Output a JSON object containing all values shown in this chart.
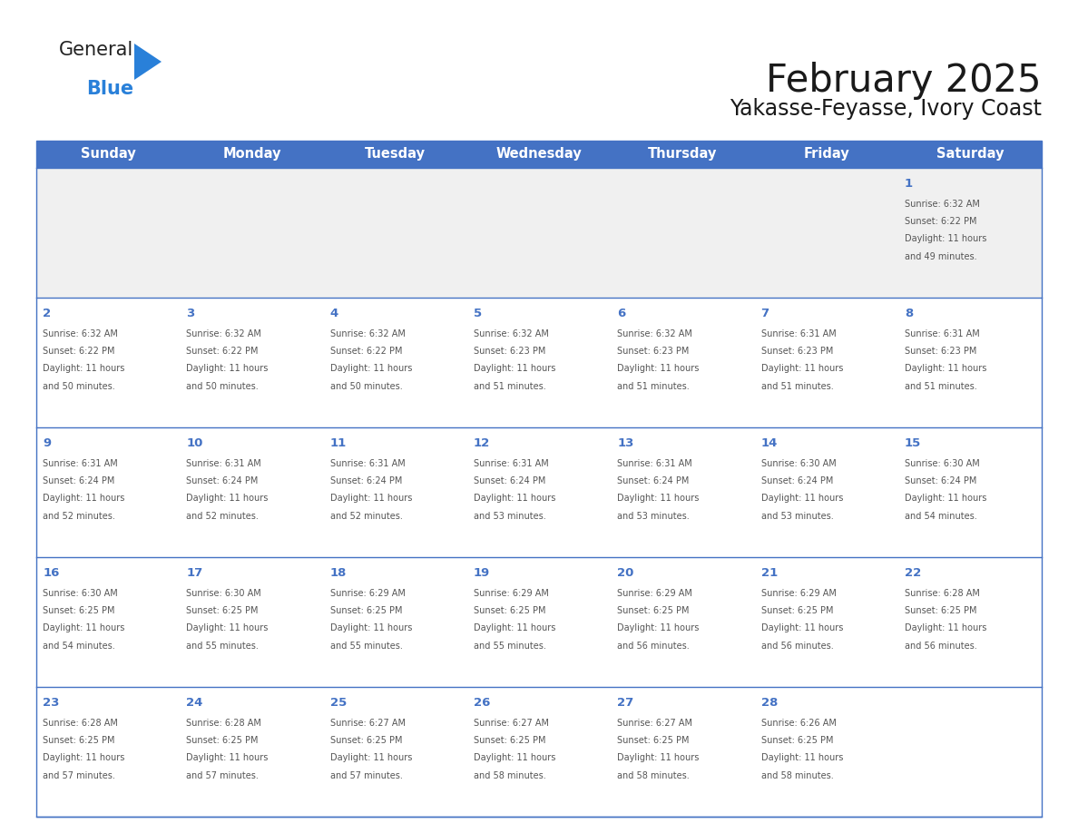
{
  "title": "February 2025",
  "subtitle": "Yakasse-Feyasse, Ivory Coast",
  "header_bg": "#4472C4",
  "header_text_color": "#FFFFFF",
  "days_of_week": [
    "Sunday",
    "Monday",
    "Tuesday",
    "Wednesday",
    "Thursday",
    "Friday",
    "Saturday"
  ],
  "row_bg_first": "#F0F0F0",
  "row_bg_normal": "#FFFFFF",
  "grid_color_header": "#4472C4",
  "grid_color_row": "#4472C4",
  "day_number_color": "#4472C4",
  "info_text_color": "#555555",
  "title_color": "#1a1a1a",
  "subtitle_color": "#1a1a1a",
  "calendar": [
    [
      null,
      null,
      null,
      null,
      null,
      null,
      {
        "day": 1,
        "sunrise": "6:32 AM",
        "sunset": "6:22 PM",
        "daylight_line1": "11 hours",
        "daylight_line2": "and 49 minutes."
      }
    ],
    [
      {
        "day": 2,
        "sunrise": "6:32 AM",
        "sunset": "6:22 PM",
        "daylight_line1": "11 hours",
        "daylight_line2": "and 50 minutes."
      },
      {
        "day": 3,
        "sunrise": "6:32 AM",
        "sunset": "6:22 PM",
        "daylight_line1": "11 hours",
        "daylight_line2": "and 50 minutes."
      },
      {
        "day": 4,
        "sunrise": "6:32 AM",
        "sunset": "6:22 PM",
        "daylight_line1": "11 hours",
        "daylight_line2": "and 50 minutes."
      },
      {
        "day": 5,
        "sunrise": "6:32 AM",
        "sunset": "6:23 PM",
        "daylight_line1": "11 hours",
        "daylight_line2": "and 51 minutes."
      },
      {
        "day": 6,
        "sunrise": "6:32 AM",
        "sunset": "6:23 PM",
        "daylight_line1": "11 hours",
        "daylight_line2": "and 51 minutes."
      },
      {
        "day": 7,
        "sunrise": "6:31 AM",
        "sunset": "6:23 PM",
        "daylight_line1": "11 hours",
        "daylight_line2": "and 51 minutes."
      },
      {
        "day": 8,
        "sunrise": "6:31 AM",
        "sunset": "6:23 PM",
        "daylight_line1": "11 hours",
        "daylight_line2": "and 51 minutes."
      }
    ],
    [
      {
        "day": 9,
        "sunrise": "6:31 AM",
        "sunset": "6:24 PM",
        "daylight_line1": "11 hours",
        "daylight_line2": "and 52 minutes."
      },
      {
        "day": 10,
        "sunrise": "6:31 AM",
        "sunset": "6:24 PM",
        "daylight_line1": "11 hours",
        "daylight_line2": "and 52 minutes."
      },
      {
        "day": 11,
        "sunrise": "6:31 AM",
        "sunset": "6:24 PM",
        "daylight_line1": "11 hours",
        "daylight_line2": "and 52 minutes."
      },
      {
        "day": 12,
        "sunrise": "6:31 AM",
        "sunset": "6:24 PM",
        "daylight_line1": "11 hours",
        "daylight_line2": "and 53 minutes."
      },
      {
        "day": 13,
        "sunrise": "6:31 AM",
        "sunset": "6:24 PM",
        "daylight_line1": "11 hours",
        "daylight_line2": "and 53 minutes."
      },
      {
        "day": 14,
        "sunrise": "6:30 AM",
        "sunset": "6:24 PM",
        "daylight_line1": "11 hours",
        "daylight_line2": "and 53 minutes."
      },
      {
        "day": 15,
        "sunrise": "6:30 AM",
        "sunset": "6:24 PM",
        "daylight_line1": "11 hours",
        "daylight_line2": "and 54 minutes."
      }
    ],
    [
      {
        "day": 16,
        "sunrise": "6:30 AM",
        "sunset": "6:25 PM",
        "daylight_line1": "11 hours",
        "daylight_line2": "and 54 minutes."
      },
      {
        "day": 17,
        "sunrise": "6:30 AM",
        "sunset": "6:25 PM",
        "daylight_line1": "11 hours",
        "daylight_line2": "and 55 minutes."
      },
      {
        "day": 18,
        "sunrise": "6:29 AM",
        "sunset": "6:25 PM",
        "daylight_line1": "11 hours",
        "daylight_line2": "and 55 minutes."
      },
      {
        "day": 19,
        "sunrise": "6:29 AM",
        "sunset": "6:25 PM",
        "daylight_line1": "11 hours",
        "daylight_line2": "and 55 minutes."
      },
      {
        "day": 20,
        "sunrise": "6:29 AM",
        "sunset": "6:25 PM",
        "daylight_line1": "11 hours",
        "daylight_line2": "and 56 minutes."
      },
      {
        "day": 21,
        "sunrise": "6:29 AM",
        "sunset": "6:25 PM",
        "daylight_line1": "11 hours",
        "daylight_line2": "and 56 minutes."
      },
      {
        "day": 22,
        "sunrise": "6:28 AM",
        "sunset": "6:25 PM",
        "daylight_line1": "11 hours",
        "daylight_line2": "and 56 minutes."
      }
    ],
    [
      {
        "day": 23,
        "sunrise": "6:28 AM",
        "sunset": "6:25 PM",
        "daylight_line1": "11 hours",
        "daylight_line2": "and 57 minutes."
      },
      {
        "day": 24,
        "sunrise": "6:28 AM",
        "sunset": "6:25 PM",
        "daylight_line1": "11 hours",
        "daylight_line2": "and 57 minutes."
      },
      {
        "day": 25,
        "sunrise": "6:27 AM",
        "sunset": "6:25 PM",
        "daylight_line1": "11 hours",
        "daylight_line2": "and 57 minutes."
      },
      {
        "day": 26,
        "sunrise": "6:27 AM",
        "sunset": "6:25 PM",
        "daylight_line1": "11 hours",
        "daylight_line2": "and 58 minutes."
      },
      {
        "day": 27,
        "sunrise": "6:27 AM",
        "sunset": "6:25 PM",
        "daylight_line1": "11 hours",
        "daylight_line2": "and 58 minutes."
      },
      {
        "day": 28,
        "sunrise": "6:26 AM",
        "sunset": "6:25 PM",
        "daylight_line1": "11 hours",
        "daylight_line2": "and 58 minutes."
      },
      null
    ]
  ],
  "logo_general_color": "#222222",
  "logo_blue_color": "#2980D9",
  "logo_triangle_color": "#2980D9"
}
